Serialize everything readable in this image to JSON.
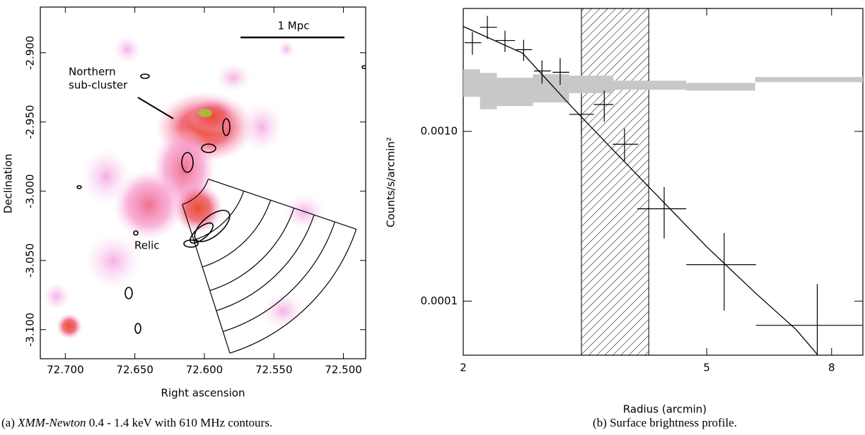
{
  "panel_a": {
    "type": "image",
    "xlabel": "Right ascension",
    "ylabel": "Declination",
    "xlim": [
      72.718,
      72.484
    ],
    "ylim": [
      -3.121,
      -2.867
    ],
    "xticks": [
      {
        "value": 72.7,
        "label": "72.700"
      },
      {
        "value": 72.65,
        "label": "72.650"
      },
      {
        "value": 72.6,
        "label": "72.600"
      },
      {
        "value": 72.55,
        "label": "72.550"
      },
      {
        "value": 72.5,
        "label": "72.500"
      }
    ],
    "yticks": [
      {
        "value": -2.9,
        "label": "-2.900"
      },
      {
        "value": -2.95,
        "label": "-2.950"
      },
      {
        "value": -3.0,
        "label": "-3.000"
      },
      {
        "value": -3.05,
        "label": "-3.050"
      },
      {
        "value": -3.1,
        "label": "-3.100"
      }
    ],
    "annotations": [
      "1 Mpc",
      "Northern",
      "sub-cluster",
      "Relic"
    ],
    "caption_label": "(a)",
    "caption_italic": "XMM-Newton",
    "caption_rest": "0.4 - 1.4 keV with 610 MHz contours."
  },
  "chart_data": {
    "type": "errorbar",
    "xscale": "log",
    "yscale": "log",
    "xlabel": "Radius (arcmin)",
    "ylabel": "Counts/s/arcmin²",
    "caption": "(b) Surface brightness profile.",
    "xlim": [
      2,
      9.0
    ],
    "ylim": [
      4.8e-05,
      0.0053
    ],
    "xticks": [
      2,
      5,
      8
    ],
    "yticks": [
      {
        "value": 0.001,
        "label": "0.0010"
      },
      {
        "value": 0.0001,
        "label": "0.0001"
      }
    ],
    "color": "#000000",
    "series": [
      {
        "x": [
          2.07,
          2.19,
          2.34,
          2.51,
          2.69,
          2.88,
          3.12,
          3.4,
          3.67,
          4.26,
          5.34,
          7.58
        ],
        "values": [
          0.00333,
          0.00411,
          0.00343,
          0.00303,
          0.00227,
          0.00223,
          0.00126,
          0.00144,
          0.00084,
          0.00035,
          0.000164,
          7.2e-05
        ],
        "x_low": [
          2.01,
          2.13,
          2.26,
          2.44,
          2.61,
          2.8,
          2.98,
          3.27,
          3.51,
          3.85,
          4.63,
          6.02
        ],
        "x_high": [
          2.14,
          2.27,
          2.43,
          2.59,
          2.78,
          2.98,
          3.27,
          3.52,
          3.86,
          4.63,
          6.02,
          8.98
        ],
        "y_low": [
          0.00283,
          0.0035,
          0.00294,
          0.0026,
          0.00191,
          0.00188,
          0.00096,
          0.00114,
          0.00067,
          0.000234,
          8.8e-05,
          4e-05
        ],
        "y_high": [
          0.00385,
          0.00479,
          0.00392,
          0.00346,
          0.00262,
          0.0027,
          0.00155,
          0.00174,
          0.00104,
          0.00047,
          0.000252,
          0.000126
        ]
      }
    ],
    "model": {
      "x": [
        2,
        2.5,
        3,
        3.5,
        4,
        5,
        6,
        7,
        7.6
      ],
      "values": [
        0.00415,
        0.00289,
        0.00141,
        0.00079,
        0.00048,
        0.000209,
        0.000112,
        6.8e-05,
        4.8e-05
      ]
    },
    "background": {
      "color": "#c8c8c8",
      "x_low": [
        2.0,
        2.13,
        2.27,
        2.6,
        2.98,
        3.52,
        4.63,
        6.0
      ],
      "x_high": [
        2.13,
        2.27,
        2.6,
        2.98,
        3.52,
        4.63,
        6.0,
        9.0
      ],
      "y_low": [
        0.0016,
        0.00135,
        0.00141,
        0.00148,
        0.00168,
        0.00176,
        0.00174,
        0.00195
      ],
      "y_high": [
        0.00232,
        0.00221,
        0.00207,
        0.00217,
        0.00213,
        0.00199,
        0.00193,
        0.00209
      ]
    },
    "excluded_range": [
      3.12,
      4.02
    ]
  }
}
